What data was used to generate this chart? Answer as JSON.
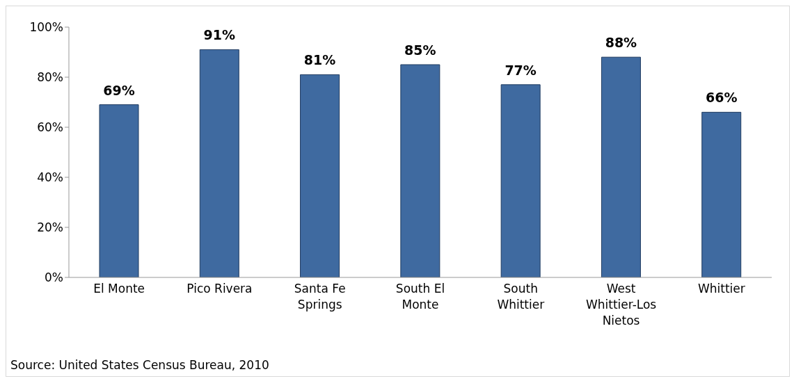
{
  "chart_data": {
    "type": "bar",
    "categories": [
      "El Monte",
      "Pico Rivera",
      "Santa Fe Springs",
      "South El Monte",
      "South Whittier",
      "West Whittier-Los Nietos",
      "Whittier"
    ],
    "values": [
      69,
      91,
      81,
      85,
      77,
      88,
      66
    ],
    "value_labels": [
      "69%",
      "91%",
      "81%",
      "85%",
      "77%",
      "88%",
      "66%"
    ],
    "color": "#3f6aa0",
    "ylim": [
      0,
      100
    ],
    "yticks": [
      {
        "value": 0,
        "label": "0%"
      },
      {
        "value": 20,
        "label": "20%"
      },
      {
        "value": 40,
        "label": "40%"
      },
      {
        "value": 60,
        "label": "60%"
      },
      {
        "value": 80,
        "label": "80%"
      },
      {
        "value": 100,
        "label": "100%"
      }
    ],
    "grid": false,
    "annotations": [
      "Source: United States Census Bureau, 2010"
    ]
  }
}
